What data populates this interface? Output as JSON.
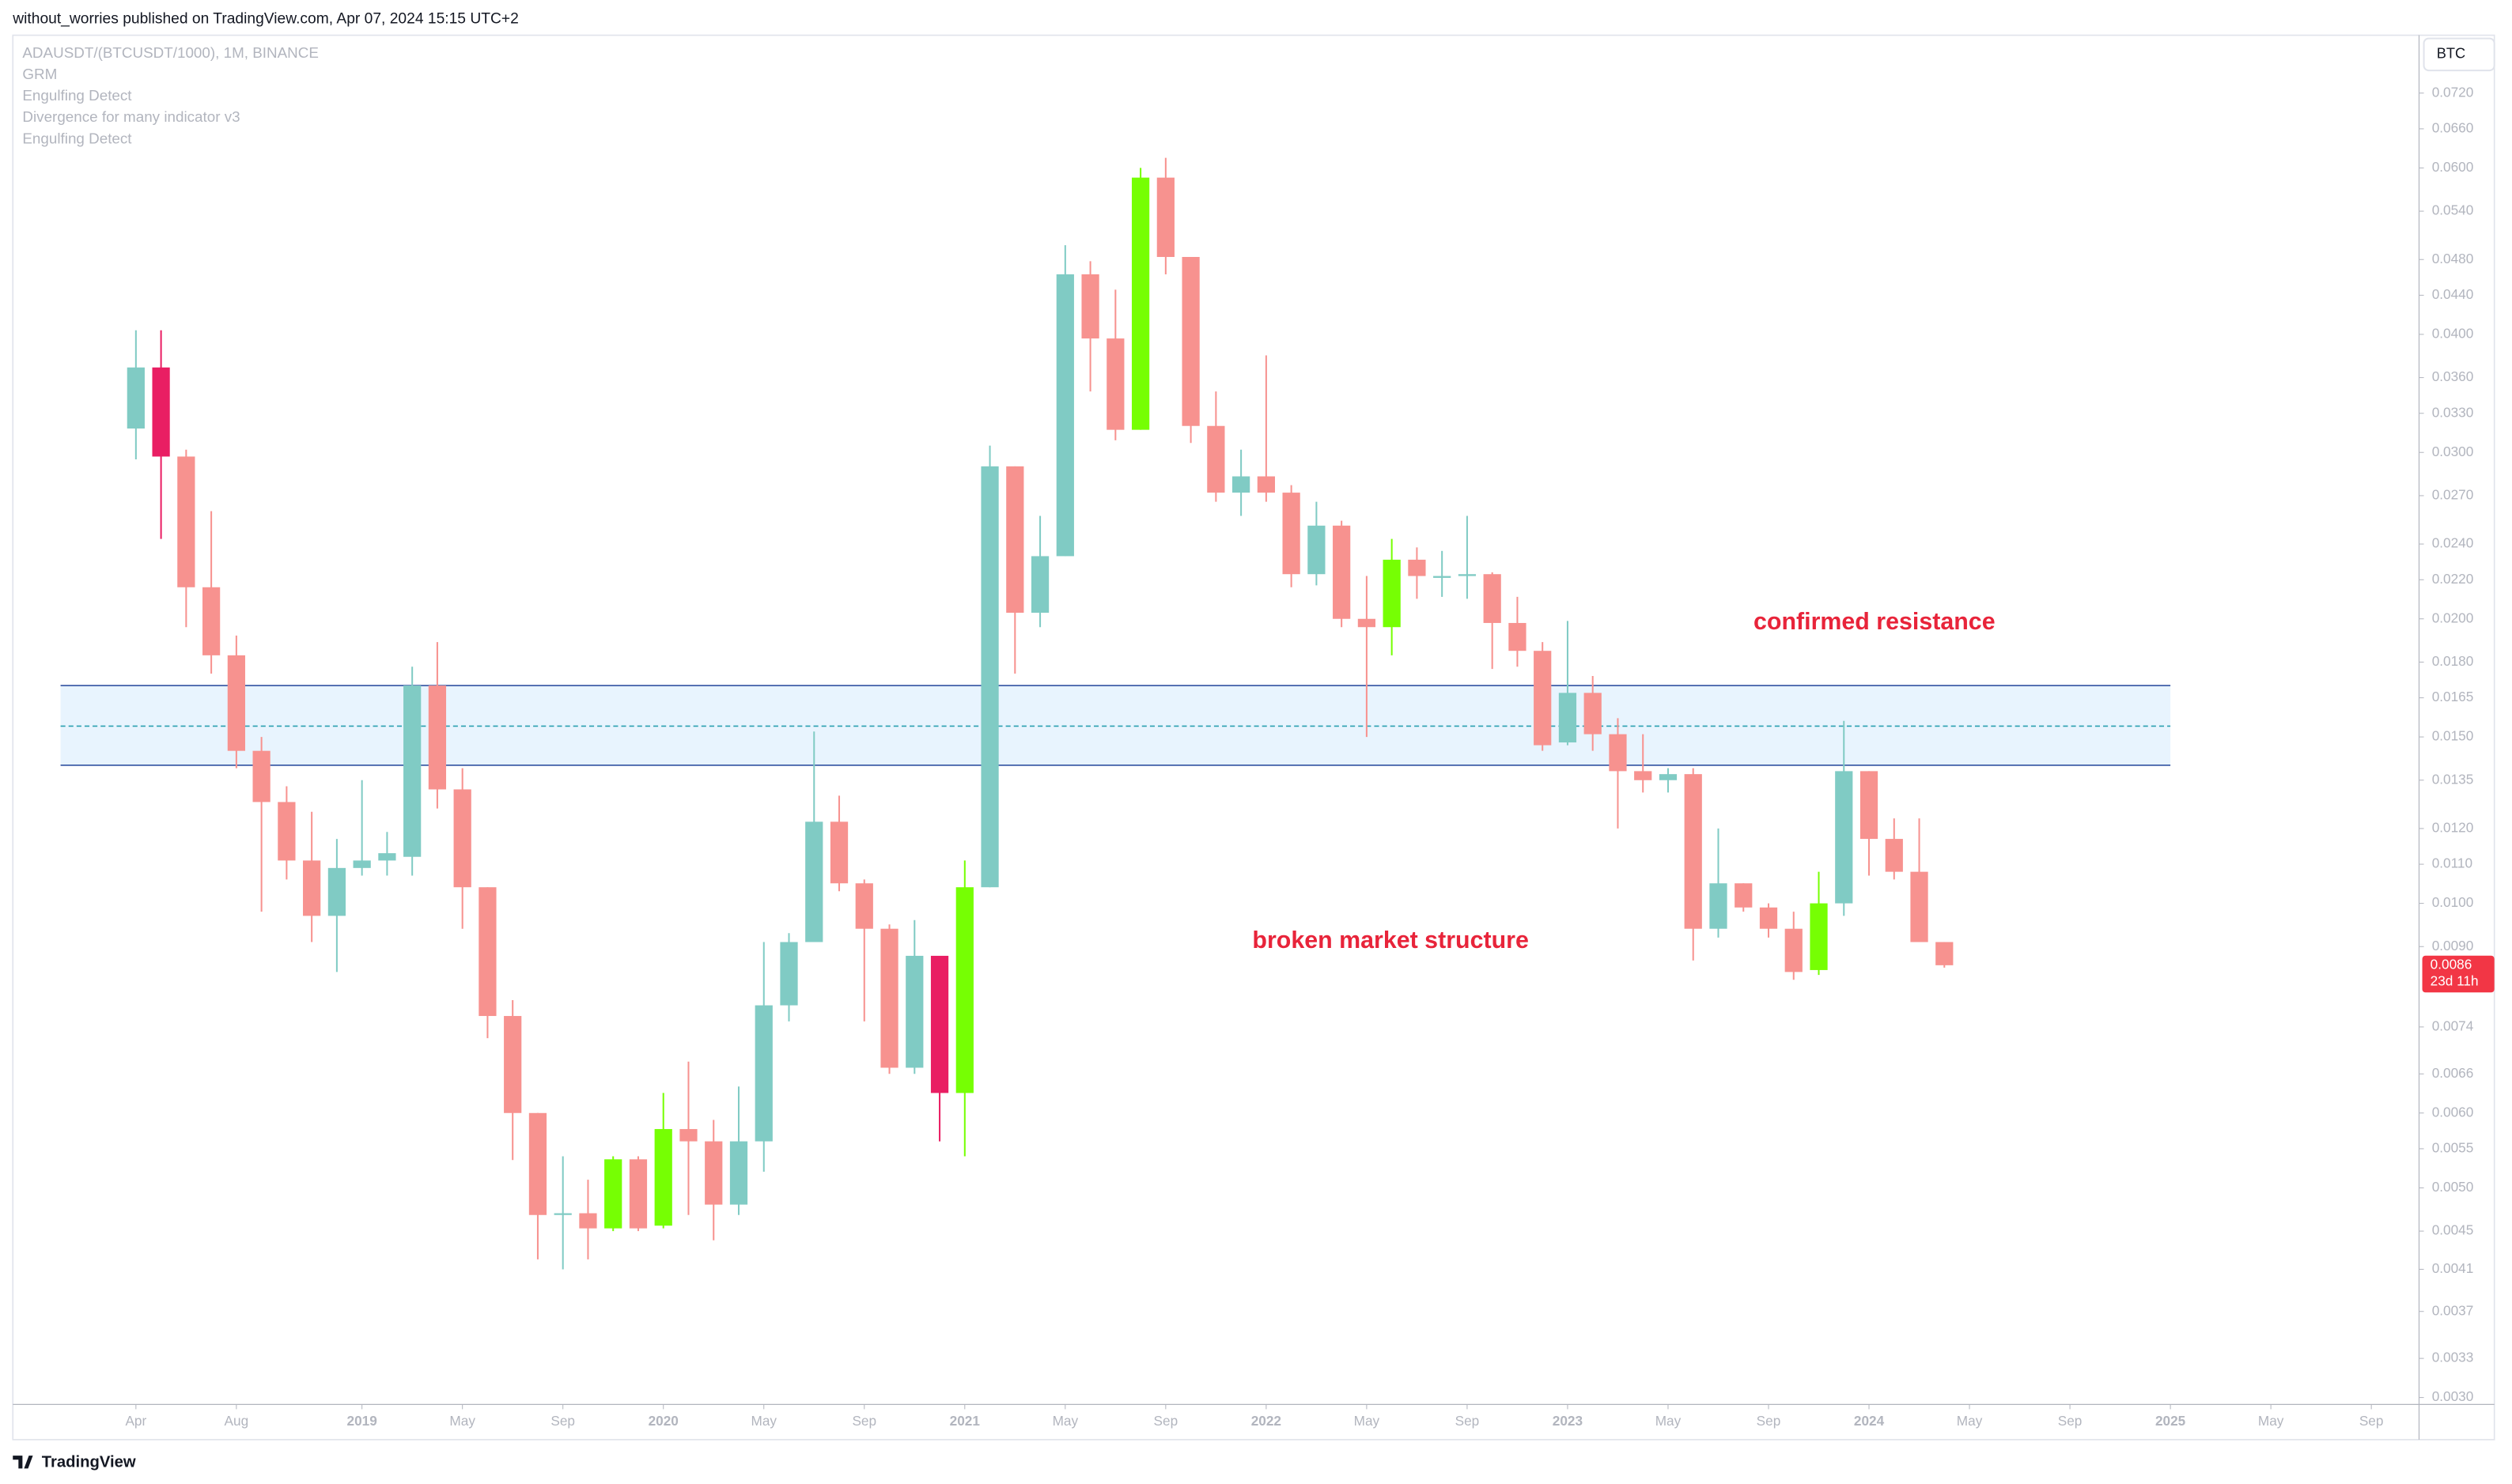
{
  "header": {
    "publisher": "without_worries published on TradingView.com, Apr 07, 2024 15:15 UTC+2",
    "legend": [
      "ADAUSDT/(BTCUSDT/1000), 1M, BINANCE",
      "GRM",
      "Engulfing Detect",
      "Divergence for many indicator v3",
      "Engulfing Detect"
    ]
  },
  "chart_data": {
    "type": "candlestick",
    "x": [
      0,
      1,
      2,
      3,
      4,
      5,
      6,
      7,
      8,
      9,
      10,
      11,
      12,
      13,
      14,
      15,
      16,
      17,
      18,
      19,
      20,
      21,
      22,
      23,
      24,
      25,
      26,
      27,
      28,
      29,
      30,
      31,
      32,
      33,
      34,
      35,
      36,
      37,
      38,
      39,
      40,
      41,
      42,
      43,
      44,
      45,
      46,
      47,
      48,
      49,
      50,
      51,
      52,
      53,
      54,
      55,
      56,
      57,
      58,
      59,
      60,
      61,
      62,
      63,
      64,
      65,
      66,
      67,
      68,
      69,
      70,
      71,
      72
    ],
    "open": [
      0.0318,
      0.0369,
      0.0297,
      0.0216,
      0.0183,
      0.0145,
      0.0128,
      0.0111,
      0.0097,
      0.0109,
      0.0111,
      0.0112,
      0.017,
      0.0132,
      0.0104,
      0.0076,
      0.006,
      0.00468,
      0.0047,
      0.00453,
      0.00536,
      0.00456,
      0.00577,
      0.0056,
      0.0048,
      0.0056,
      0.0078,
      0.0091,
      0.0122,
      0.0105,
      0.0094,
      0.0067,
      0.0088,
      0.0063,
      0.0104,
      0.029,
      0.0203,
      0.0233,
      0.0463,
      0.0396,
      0.0317,
      0.0586,
      0.0483,
      0.032,
      0.0272,
      0.0283,
      0.0272,
      0.0223,
      0.0251,
      0.02,
      0.0196,
      0.0231,
      0.0221,
      0.0222,
      0.0223,
      0.0198,
      0.0185,
      0.0148,
      0.0167,
      0.0151,
      0.0138,
      0.0135,
      0.0137,
      0.0094,
      0.0105,
      0.0099,
      0.0094,
      0.0085,
      0.01,
      0.0138,
      0.0117,
      0.0108,
      0.0091
    ],
    "high": [
      0.0404,
      0.0404,
      0.0302,
      0.026,
      0.0192,
      0.015,
      0.0133,
      0.0125,
      0.0117,
      0.0135,
      0.0119,
      0.0178,
      0.0189,
      0.0139,
      0.0104,
      0.0079,
      0.006,
      0.0054,
      0.0051,
      0.0054,
      0.0054,
      0.0063,
      0.0068,
      0.0059,
      0.0064,
      0.0091,
      0.0093,
      0.0152,
      0.013,
      0.0106,
      0.0095,
      0.0096,
      0.0088,
      0.0111,
      0.0305,
      0.029,
      0.0257,
      0.0497,
      0.0478,
      0.0446,
      0.06,
      0.0615,
      0.0483,
      0.0348,
      0.0302,
      0.038,
      0.0277,
      0.0266,
      0.0254,
      0.0222,
      0.0243,
      0.0238,
      0.0236,
      0.0257,
      0.0224,
      0.0211,
      0.0189,
      0.0199,
      0.0174,
      0.0157,
      0.0151,
      0.0139,
      0.0139,
      0.012,
      0.0105,
      0.01,
      0.0098,
      0.0108,
      0.0156,
      0.0138,
      0.0123,
      0.0123,
      0.0091
    ],
    "low": [
      0.0295,
      0.0243,
      0.0196,
      0.0175,
      0.0139,
      0.0098,
      0.0106,
      0.0091,
      0.00846,
      0.0107,
      0.0107,
      0.0107,
      0.0126,
      0.0094,
      0.0072,
      0.00535,
      0.0042,
      0.0041,
      0.0042,
      0.0045,
      0.0045,
      0.00453,
      0.00468,
      0.0044,
      0.00468,
      0.0052,
      0.0075,
      0.0091,
      0.0103,
      0.0075,
      0.0066,
      0.0066,
      0.0056,
      0.0054,
      0.0104,
      0.0175,
      0.0196,
      0.0233,
      0.0348,
      0.0309,
      0.0317,
      0.0463,
      0.0307,
      0.0266,
      0.0257,
      0.0266,
      0.0216,
      0.0217,
      0.0196,
      0.015,
      0.0183,
      0.021,
      0.0211,
      0.021,
      0.0177,
      0.0178,
      0.0145,
      0.0147,
      0.0145,
      0.012,
      0.0131,
      0.0131,
      0.0087,
      0.0092,
      0.0098,
      0.0092,
      0.0083,
      0.0084,
      0.0097,
      0.0107,
      0.0106,
      0.0091,
      0.00855
    ],
    "close": [
      0.0369,
      0.0297,
      0.0216,
      0.0183,
      0.0145,
      0.0128,
      0.0111,
      0.0097,
      0.0109,
      0.0111,
      0.0113,
      0.017,
      0.0132,
      0.0104,
      0.0076,
      0.006,
      0.00468,
      0.0047,
      0.00453,
      0.00536,
      0.00453,
      0.00577,
      0.0056,
      0.0048,
      0.0056,
      0.0078,
      0.0091,
      0.0122,
      0.0105,
      0.0094,
      0.0067,
      0.0088,
      0.0063,
      0.0104,
      0.029,
      0.0203,
      0.0233,
      0.0463,
      0.0396,
      0.0317,
      0.0586,
      0.0483,
      0.032,
      0.0272,
      0.0283,
      0.0272,
      0.0223,
      0.0251,
      0.02,
      0.0196,
      0.0231,
      0.0222,
      0.0222,
      0.0223,
      0.0198,
      0.0185,
      0.0147,
      0.0167,
      0.0151,
      0.0138,
      0.0135,
      0.0137,
      0.0094,
      0.0105,
      0.0099,
      0.0094,
      0.00846,
      0.01,
      0.0138,
      0.0117,
      0.0108,
      0.0091,
      0.0086
    ],
    "colors": [
      "#80cbc4",
      "#e91e63",
      "#f7928f",
      "#f7928f",
      "#f7928f",
      "#f7928f",
      "#f7928f",
      "#f7928f",
      "#80cbc4",
      "#80cbc4",
      "#80cbc4",
      "#80cbc4",
      "#f7928f",
      "#f7928f",
      "#f7928f",
      "#f7928f",
      "#f7928f",
      "#80cbc4",
      "#f7928f",
      "#76ff03",
      "#f7928f",
      "#76ff03",
      "#f7928f",
      "#f7928f",
      "#80cbc4",
      "#80cbc4",
      "#80cbc4",
      "#80cbc4",
      "#f7928f",
      "#f7928f",
      "#f7928f",
      "#80cbc4",
      "#e91e63",
      "#76ff03",
      "#80cbc4",
      "#f7928f",
      "#80cbc4",
      "#80cbc4",
      "#f7928f",
      "#f7928f",
      "#76ff03",
      "#f7928f",
      "#f7928f",
      "#f7928f",
      "#80cbc4",
      "#f7928f",
      "#f7928f",
      "#80cbc4",
      "#f7928f",
      "#f7928f",
      "#76ff03",
      "#f7928f",
      "#80cbc4",
      "#80cbc4",
      "#f7928f",
      "#f7928f",
      "#f7928f",
      "#80cbc4",
      "#f7928f",
      "#f7928f",
      "#f7928f",
      "#80cbc4",
      "#f7928f",
      "#80cbc4",
      "#f7928f",
      "#f7928f",
      "#f7928f",
      "#76ff03",
      "#80cbc4",
      "#f7928f",
      "#f7928f",
      "#f7928f",
      "#f7928f"
    ],
    "log_scale": true,
    "ylim": [
      0.00295,
      0.0829
    ],
    "yticks": [
      {
        "value": 0.072,
        "label": "0.0720"
      },
      {
        "value": 0.066,
        "label": "0.0660"
      },
      {
        "value": 0.06,
        "label": "0.0600"
      },
      {
        "value": 0.054,
        "label": "0.0540"
      },
      {
        "value": 0.048,
        "label": "0.0480"
      },
      {
        "value": 0.044,
        "label": "0.0440"
      },
      {
        "value": 0.04,
        "label": "0.0400"
      },
      {
        "value": 0.036,
        "label": "0.0360"
      },
      {
        "value": 0.033,
        "label": "0.0330"
      },
      {
        "value": 0.03,
        "label": "0.0300"
      },
      {
        "value": 0.027,
        "label": "0.0270"
      },
      {
        "value": 0.024,
        "label": "0.0240"
      },
      {
        "value": 0.022,
        "label": "0.0220"
      },
      {
        "value": 0.02,
        "label": "0.0200"
      },
      {
        "value": 0.018,
        "label": "0.0180"
      },
      {
        "value": 0.0165,
        "label": "0.0165"
      },
      {
        "value": 0.015,
        "label": "0.0150"
      },
      {
        "value": 0.0135,
        "label": "0.0135"
      },
      {
        "value": 0.012,
        "label": "0.0120"
      },
      {
        "value": 0.011,
        "label": "0.0110"
      },
      {
        "value": 0.01,
        "label": "0.0100"
      },
      {
        "value": 0.009,
        "label": "0.0090"
      },
      {
        "value": 0.0074,
        "label": "0.0074"
      },
      {
        "value": 0.0066,
        "label": "0.0066"
      },
      {
        "value": 0.006,
        "label": "0.0060"
      },
      {
        "value": 0.0055,
        "label": "0.0055"
      },
      {
        "value": 0.005,
        "label": "0.0050"
      },
      {
        "value": 0.0045,
        "label": "0.0045"
      },
      {
        "value": 0.0041,
        "label": "0.0041"
      },
      {
        "value": 0.0037,
        "label": "0.0037"
      },
      {
        "value": 0.0033,
        "label": "0.0033"
      },
      {
        "value": 0.003,
        "label": "0.0030"
      }
    ],
    "xlim": [
      -4.9,
      90.9
    ],
    "xticks": [
      {
        "value": 0,
        "label": "Apr"
      },
      {
        "value": 4,
        "label": "Aug"
      },
      {
        "value": 9,
        "label": "2019"
      },
      {
        "value": 13,
        "label": "May"
      },
      {
        "value": 17,
        "label": "Sep"
      },
      {
        "value": 21,
        "label": "2020"
      },
      {
        "value": 25,
        "label": "May"
      },
      {
        "value": 29,
        "label": "Sep"
      },
      {
        "value": 33,
        "label": "2021"
      },
      {
        "value": 37,
        "label": "May"
      },
      {
        "value": 41,
        "label": "Sep"
      },
      {
        "value": 45,
        "label": "2022"
      },
      {
        "value": 49,
        "label": "May"
      },
      {
        "value": 53,
        "label": "Sep"
      },
      {
        "value": 57,
        "label": "2023"
      },
      {
        "value": 61,
        "label": "May"
      },
      {
        "value": 65,
        "label": "Sep"
      },
      {
        "value": 69,
        "label": "2024"
      },
      {
        "value": 73,
        "label": "May"
      },
      {
        "value": 77,
        "label": "Sep"
      },
      {
        "value": 81,
        "label": "2025"
      },
      {
        "value": 85,
        "label": "May"
      },
      {
        "value": 89,
        "label": "Sep"
      }
    ],
    "zone": {
      "top": 0.017,
      "bottom": 0.014,
      "mid": 0.0154,
      "x": [
        -3,
        81
      ]
    },
    "annotations": [
      "confirmed resistance",
      "broken market structure"
    ],
    "last_price": {
      "value": 0.0086,
      "label": "0.0086"
    },
    "countdown": "23d 11h",
    "symbol_button": "BTC"
  },
  "footer": {
    "brand": "TradingView"
  }
}
